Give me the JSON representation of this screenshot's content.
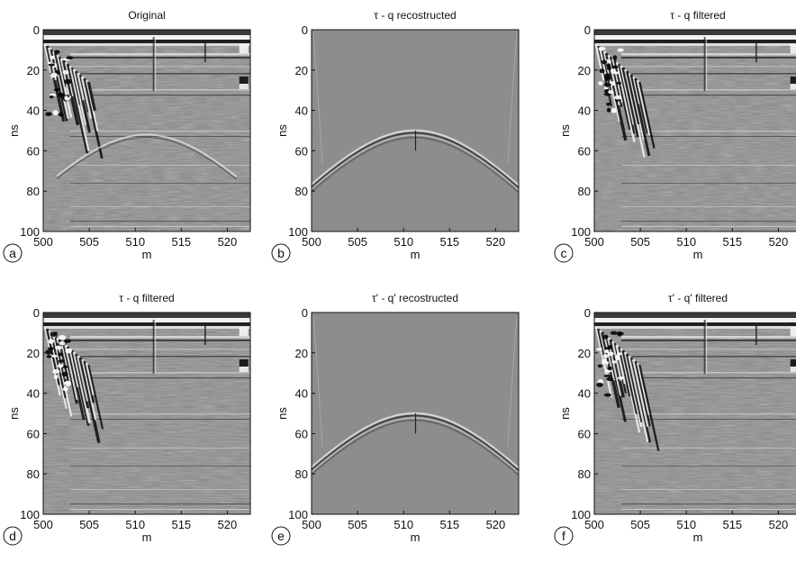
{
  "figure": {
    "panels": [
      {
        "id": "a",
        "title": "Original",
        "letter": "a",
        "kind": "radargram-full"
      },
      {
        "id": "b",
        "title": "τ - q recostructed",
        "letter": "b",
        "kind": "hyperbola-only"
      },
      {
        "id": "c",
        "title": "τ - q filtered",
        "letter": "c",
        "kind": "radargram-filtered"
      },
      {
        "id": "d",
        "title": "τ - q filtered",
        "letter": "d",
        "kind": "radargram-filtered"
      },
      {
        "id": "e",
        "title": "τ' - q' recostructed",
        "letter": "e",
        "kind": "hyperbola-only"
      },
      {
        "id": "f",
        "title": "τ' - q' filtered",
        "letter": "f",
        "kind": "radargram-filtered"
      }
    ],
    "x_axis": {
      "label": "m",
      "ticks": [
        "500",
        "505",
        "510",
        "515",
        "520"
      ],
      "range": [
        500,
        522.5
      ]
    },
    "y_axis": {
      "label": "ns",
      "ticks": [
        "0",
        "20",
        "40",
        "60",
        "80",
        "100"
      ],
      "range": [
        0,
        100
      ]
    },
    "colormap": "grayscale"
  }
}
